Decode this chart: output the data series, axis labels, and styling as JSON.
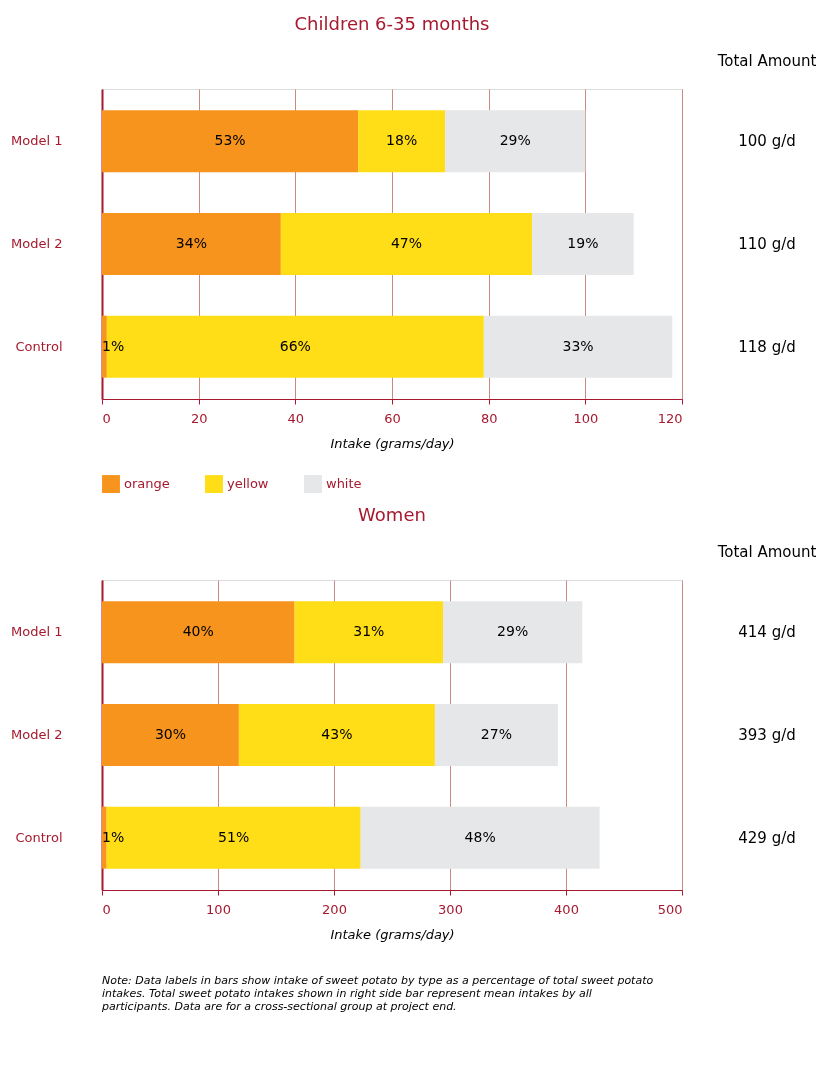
{
  "chart_data": [
    {
      "type": "bar",
      "orientation": "horizontal",
      "stacked": true,
      "title": "Children 6-35 months",
      "xlabel": "Intake (grams/day)",
      "categories": [
        "Model 1",
        "Model 2",
        "Control"
      ],
      "series": [
        {
          "name": "orange",
          "color": "#f7941d",
          "values": [
            53,
            37,
            1
          ]
        },
        {
          "name": "yellow",
          "color": "#ffde17",
          "values": [
            18,
            52,
            78
          ]
        },
        {
          "name": "white",
          "color": "#e6e7e8",
          "values": [
            29,
            21,
            39
          ]
        }
      ],
      "xlim": [
        0,
        120
      ],
      "xticks": [
        0,
        20,
        40,
        60,
        80,
        100,
        120
      ],
      "grid": "x",
      "legend": "bottom",
      "annotations": [
        "Total Amount",
        "100 g/d",
        "110 g/d",
        "118 g/d",
        "53%",
        "18%",
        "29%",
        "34%",
        "47%",
        "19%",
        "1%",
        "66%",
        "33%"
      ]
    },
    {
      "type": "bar",
      "orientation": "horizontal",
      "stacked": true,
      "title": "Women",
      "xlabel": "Intake (grams/day)",
      "categories": [
        "Model 1",
        "Model 2",
        "Control"
      ],
      "series": [
        {
          "color": "#f7941d",
          "values": [
            166,
            118,
            4
          ]
        },
        {
          "color": "#ffde17",
          "values": [
            128,
            169,
            219
          ]
        },
        {
          "color": "#e6e7e8",
          "values": [
            120,
            106,
            206
          ]
        }
      ],
      "xlim": [
        0,
        500
      ],
      "xticks": [
        0,
        100,
        200,
        300,
        400,
        500
      ],
      "grid": "x",
      "annotations": [
        "Total Amount",
        "414 g/d",
        "393 g/d",
        "429 g/d",
        "40%",
        "31%",
        "29%",
        "30%",
        "43%",
        "27%",
        "1%",
        "51%",
        "48%",
        "Note: Data labels in bars show intake of sweet potato by type as a percentage of total sweet potato intakes. Total sweet potato intakes shown in right side bar represent mean intakes by all participants. Data are for a cross-sectional group at project end."
      ]
    }
  ]
}
